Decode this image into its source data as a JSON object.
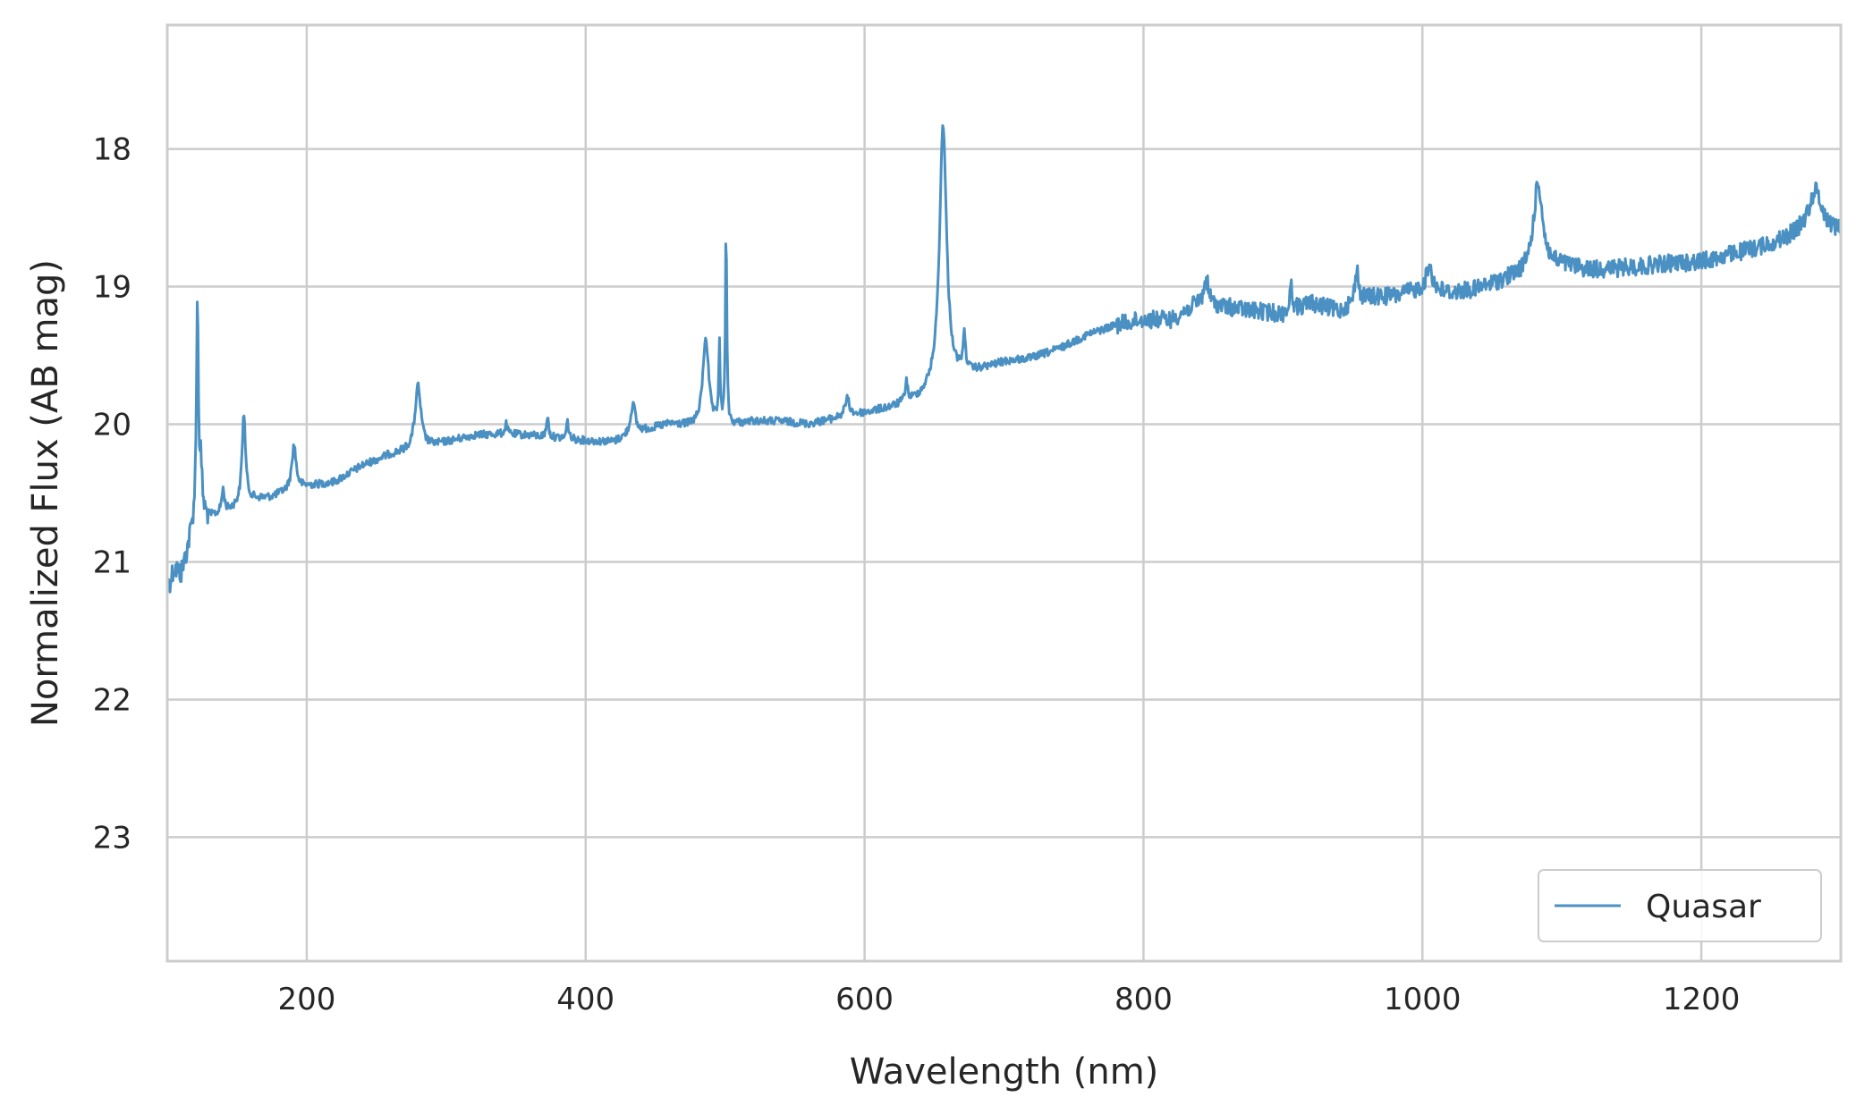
{
  "chart_data": {
    "type": "line",
    "title": "",
    "xlabel": "Wavelength (nm)",
    "ylabel": "Normalized Flux (AB mag)",
    "xlim": [
      100,
      1300
    ],
    "ylim": [
      23.9,
      17.1
    ],
    "y_inverted": true,
    "x_ticks": [
      200,
      400,
      600,
      800,
      1000,
      1200
    ],
    "y_ticks": [
      18,
      19,
      20,
      21,
      22,
      23
    ],
    "x_tick_labels": [
      "200",
      "400",
      "600",
      "800",
      "1000",
      "1200"
    ],
    "y_tick_labels": [
      "18",
      "19",
      "20",
      "21",
      "22",
      "23"
    ],
    "grid": true,
    "legend": {
      "placement": "lower-right",
      "entries": [
        "Quasar"
      ]
    },
    "series": [
      {
        "name": "Quasar",
        "color": "#4a90c2",
        "continuum": [
          [
            100,
            21.2
          ],
          [
            105,
            21.05
          ],
          [
            110,
            21.1
          ],
          [
            115,
            20.9
          ],
          [
            120,
            20.7
          ],
          [
            130,
            20.68
          ],
          [
            140,
            20.65
          ],
          [
            150,
            20.6
          ],
          [
            160,
            20.55
          ],
          [
            175,
            20.53
          ],
          [
            190,
            20.47
          ],
          [
            200,
            20.45
          ],
          [
            220,
            20.42
          ],
          [
            240,
            20.3
          ],
          [
            260,
            20.22
          ],
          [
            280,
            20.18
          ],
          [
            300,
            20.13
          ],
          [
            320,
            20.08
          ],
          [
            340,
            20.07
          ],
          [
            360,
            20.08
          ],
          [
            380,
            20.1
          ],
          [
            400,
            20.12
          ],
          [
            420,
            20.13
          ],
          [
            440,
            20.05
          ],
          [
            460,
            20.0
          ],
          [
            480,
            20.02
          ],
          [
            500,
            20.02
          ],
          [
            520,
            19.98
          ],
          [
            540,
            19.98
          ],
          [
            560,
            20.0
          ],
          [
            580,
            19.96
          ],
          [
            600,
            19.92
          ],
          [
            620,
            19.88
          ],
          [
            640,
            19.82
          ],
          [
            660,
            19.7
          ],
          [
            680,
            19.62
          ],
          [
            700,
            19.55
          ],
          [
            720,
            19.52
          ],
          [
            740,
            19.45
          ],
          [
            760,
            19.35
          ],
          [
            780,
            19.28
          ],
          [
            800,
            19.24
          ],
          [
            820,
            19.24
          ],
          [
            840,
            19.12
          ],
          [
            860,
            19.15
          ],
          [
            880,
            19.18
          ],
          [
            900,
            19.2
          ],
          [
            920,
            19.12
          ],
          [
            940,
            19.18
          ],
          [
            960,
            19.08
          ],
          [
            980,
            19.07
          ],
          [
            1000,
            19.02
          ],
          [
            1020,
            19.05
          ],
          [
            1040,
            19.02
          ],
          [
            1060,
            18.95
          ],
          [
            1080,
            18.9
          ],
          [
            1100,
            18.85
          ],
          [
            1120,
            18.88
          ],
          [
            1140,
            18.87
          ],
          [
            1160,
            18.85
          ],
          [
            1180,
            18.83
          ],
          [
            1200,
            18.82
          ],
          [
            1220,
            18.77
          ],
          [
            1240,
            18.72
          ],
          [
            1260,
            18.66
          ],
          [
            1280,
            18.55
          ],
          [
            1290,
            18.58
          ],
          [
            1300,
            18.6
          ]
        ],
        "emission_lines": [
          {
            "center": 121.6,
            "peak": 19.1,
            "width": 0.8
          },
          {
            "center": 124,
            "peak": 20.35,
            "width": 1.2
          },
          {
            "center": 140,
            "peak": 20.48,
            "width": 1.2
          },
          {
            "center": 154.9,
            "peak": 19.92,
            "width": 1.5
          },
          {
            "center": 190.9,
            "peak": 20.15,
            "width": 1.8
          },
          {
            "center": 279.8,
            "peak": 19.72,
            "width": 2.5
          },
          {
            "center": 343,
            "peak": 20.0,
            "width": 1.0
          },
          {
            "center": 372.7,
            "peak": 19.93,
            "width": 0.8
          },
          {
            "center": 387,
            "peak": 19.98,
            "width": 0.9
          },
          {
            "center": 434,
            "peak": 19.85,
            "width": 2.0
          },
          {
            "center": 486.1,
            "peak": 19.37,
            "width": 2.5
          },
          {
            "center": 495.9,
            "peak": 19.42,
            "width": 0.6
          },
          {
            "center": 500.7,
            "peak": 18.55,
            "width": 0.6
          },
          {
            "center": 587.6,
            "peak": 19.82,
            "width": 2.0
          },
          {
            "center": 630,
            "peak": 19.7,
            "width": 1.0
          },
          {
            "center": 656.3,
            "peak": 17.82,
            "width": 3.0
          },
          {
            "center": 671.5,
            "peak": 19.4,
            "width": 1.2
          },
          {
            "center": 845,
            "peak": 18.95,
            "width": 2.0
          },
          {
            "center": 906,
            "peak": 19.0,
            "width": 1.2
          },
          {
            "center": 953,
            "peak": 18.87,
            "width": 1.5
          },
          {
            "center": 1005,
            "peak": 18.85,
            "width": 2.5
          },
          {
            "center": 1083,
            "peak": 18.25,
            "width": 4.0
          },
          {
            "center": 1282,
            "peak": 18.3,
            "width": 5.0
          }
        ],
        "noise_amplitude": 0.04,
        "sample_step_nm": 0.5
      }
    ]
  }
}
